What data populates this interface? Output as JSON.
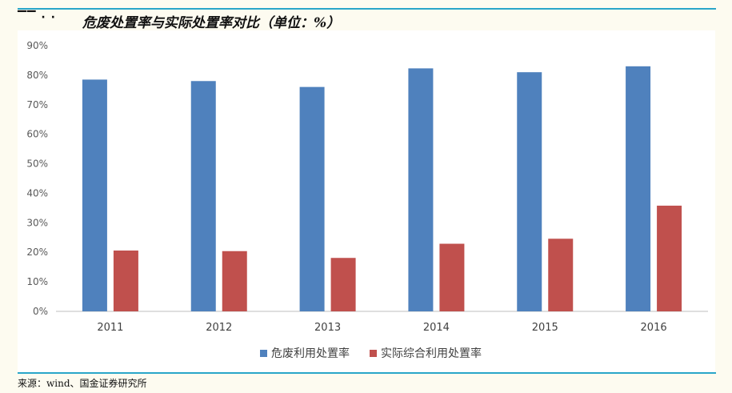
{
  "header": {
    "title": "危废处置率与实际处置率对比（单位：%）"
  },
  "footer": {
    "source": "来源：wind、国金证券研究所"
  },
  "colors": {
    "series1": "#4f81bd",
    "series2": "#c0504d",
    "rule": "#2aa6c9",
    "background": "#fdfbf0"
  },
  "chart_data": {
    "type": "bar",
    "title": "危废处置率与实际处置率对比（单位：%）",
    "categories": [
      "2011",
      "2012",
      "2013",
      "2014",
      "2015",
      "2016"
    ],
    "series": [
      {
        "name": "危废利用处置率",
        "values": [
          78.5,
          78.0,
          76.0,
          82.3,
          81.0,
          83.0
        ]
      },
      {
        "name": "实际综合利用处置率",
        "values": [
          20.6,
          20.4,
          18.1,
          22.9,
          24.6,
          35.8
        ]
      }
    ],
    "ylim": [
      0,
      90
    ],
    "yticks": [
      "0%",
      "10%",
      "20%",
      "30%",
      "40%",
      "50%",
      "60%",
      "70%",
      "80%",
      "90%"
    ],
    "grid": false,
    "legend_position": "bottom-center",
    "xlabel": "",
    "ylabel": ""
  }
}
